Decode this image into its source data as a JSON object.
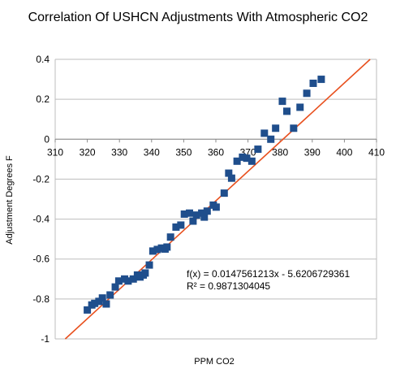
{
  "chart_data": {
    "type": "scatter",
    "title": "Correlation Of USHCN Adjustments With Atmospheric CO2",
    "xlabel": "PPM CO2",
    "ylabel": "Adjustment Degrees F",
    "xlim": [
      310,
      410
    ],
    "ylim": [
      -1,
      0.4
    ],
    "x_ticks": [
      "310",
      "320",
      "330",
      "340",
      "350",
      "360",
      "370",
      "380",
      "390",
      "400",
      "410"
    ],
    "y_ticks": [
      "-1",
      "-0.8",
      "-0.6",
      "-0.4",
      "-0.2",
      "0",
      "0.2",
      "0.4"
    ],
    "grid": "horizontal",
    "series": [
      {
        "marker_color": "#1f4e8c",
        "points": [
          [
            320.0,
            -0.855
          ],
          [
            321.4,
            -0.83
          ],
          [
            322.3,
            -0.822
          ],
          [
            323.6,
            -0.812
          ],
          [
            324.7,
            -0.795
          ],
          [
            325.9,
            -0.825
          ],
          [
            327.1,
            -0.78
          ],
          [
            328.7,
            -0.74
          ],
          [
            329.8,
            -0.71
          ],
          [
            331.6,
            -0.7
          ],
          [
            332.7,
            -0.71
          ],
          [
            334.3,
            -0.7
          ],
          [
            335.6,
            -0.68
          ],
          [
            336.4,
            -0.69
          ],
          [
            337.4,
            -0.68
          ],
          [
            338.0,
            -0.67
          ],
          [
            339.3,
            -0.63
          ],
          [
            340.4,
            -0.56
          ],
          [
            341.8,
            -0.552
          ],
          [
            343.1,
            -0.545
          ],
          [
            344.2,
            -0.55
          ],
          [
            344.8,
            -0.54
          ],
          [
            345.9,
            -0.49
          ],
          [
            347.6,
            -0.44
          ],
          [
            349.1,
            -0.43
          ],
          [
            350.2,
            -0.375
          ],
          [
            351.8,
            -0.37
          ],
          [
            352.9,
            -0.41
          ],
          [
            354.0,
            -0.38
          ],
          [
            355.6,
            -0.37
          ],
          [
            356.4,
            -0.39
          ],
          [
            357.3,
            -0.36
          ],
          [
            359.2,
            -0.33
          ],
          [
            360.1,
            -0.34
          ],
          [
            362.6,
            -0.27
          ],
          [
            364.0,
            -0.17
          ],
          [
            364.9,
            -0.195
          ],
          [
            366.6,
            -0.11
          ],
          [
            368.3,
            -0.09
          ],
          [
            369.6,
            -0.095
          ],
          [
            371.2,
            -0.11
          ],
          [
            373.1,
            -0.05
          ],
          [
            375.1,
            0.03
          ],
          [
            377.1,
            0.0
          ],
          [
            378.6,
            0.055
          ],
          [
            380.7,
            0.19
          ],
          [
            382.1,
            0.14
          ],
          [
            384.2,
            0.055
          ],
          [
            386.2,
            0.16
          ],
          [
            388.3,
            0.23
          ],
          [
            390.3,
            0.28
          ],
          [
            392.8,
            0.3
          ]
        ]
      }
    ],
    "trendline": {
      "color": "#e8501e",
      "slope": 0.0147561213,
      "intercept": -5.6206729361,
      "equation": "f(x) = 0.0147561213x - 5.6206729361",
      "r_squared": "R² = 0.9871304045"
    },
    "grid_color": "#bdbdbd"
  }
}
